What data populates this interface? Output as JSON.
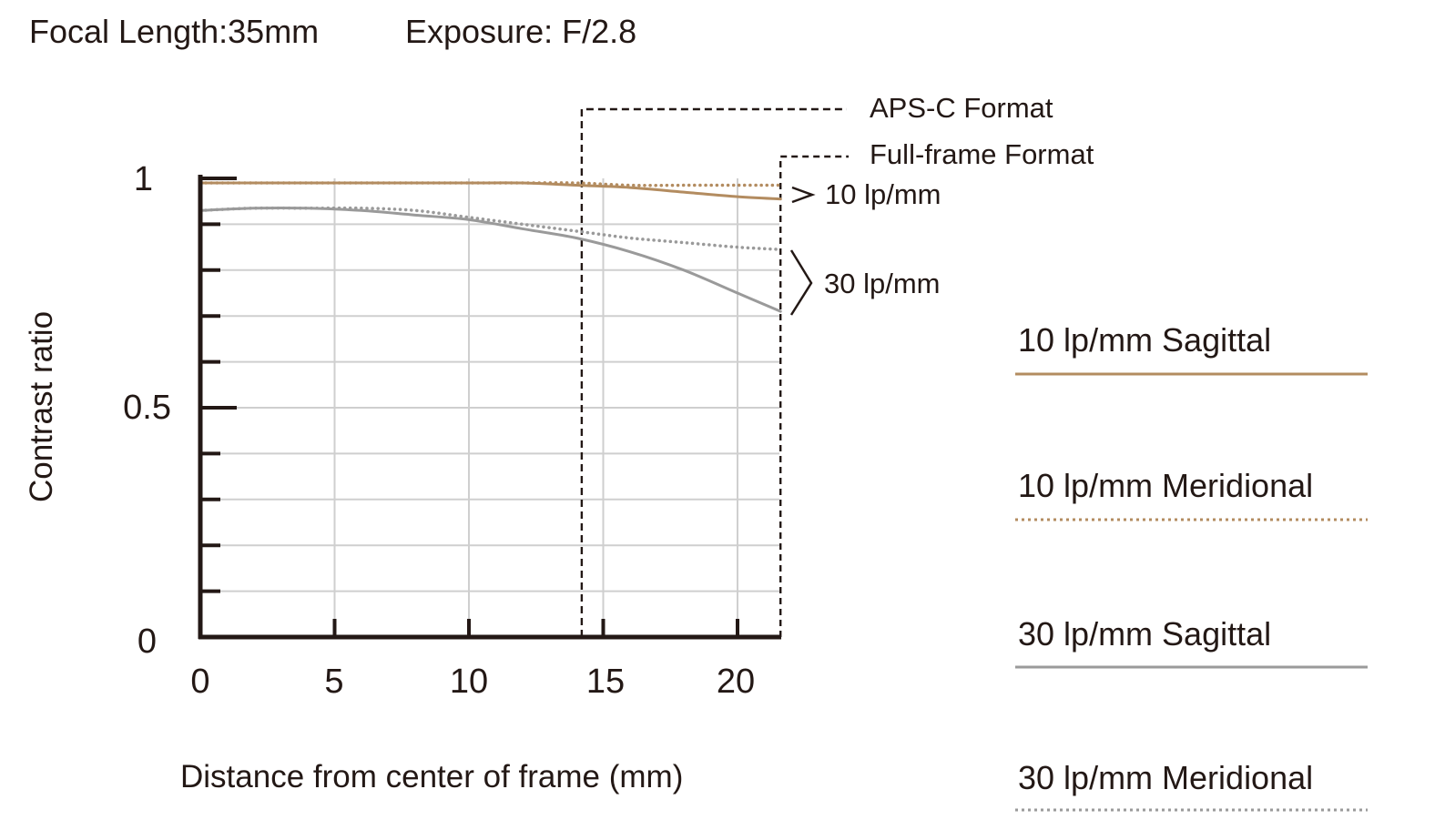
{
  "header": {
    "focal_length": "Focal Length:35mm",
    "exposure": "Exposure: F/2.8"
  },
  "colors": {
    "lp10": "#b38c60",
    "lp30": "#9a9a9a",
    "axis": "#231815",
    "grid": "#cfcfcf"
  },
  "chart_data": {
    "type": "line",
    "xlabel": "Distance from center of frame (mm)",
    "ylabel": "Contrast ratio",
    "xlim": [
      0,
      21.6
    ],
    "ylim": [
      0,
      1
    ],
    "x_ticks": [
      "0",
      "5",
      "10",
      "15",
      "20"
    ],
    "y_ticks": [
      "0",
      "0.5",
      "1"
    ],
    "grid": true,
    "format_lines": [
      {
        "name": "APS-C Format",
        "x": 14.2
      },
      {
        "name": "Full-frame Format",
        "x": 21.6
      }
    ],
    "frequency_labels": [
      "10 lp/mm",
      "30 lp/mm"
    ],
    "x": [
      0,
      2,
      4,
      6,
      8,
      10,
      12,
      14,
      16,
      18,
      20,
      21.6
    ],
    "series": [
      {
        "name": "10 lp/mm Sagittal",
        "color": "#b38c60",
        "style": "solid",
        "values": [
          0.99,
          0.99,
          0.99,
          0.99,
          0.99,
          0.99,
          0.99,
          0.985,
          0.98,
          0.97,
          0.96,
          0.955
        ]
      },
      {
        "name": "10 lp/mm Meridional",
        "color": "#b38c60",
        "style": "dotted",
        "values": [
          0.99,
          0.99,
          0.99,
          0.99,
          0.99,
          0.99,
          0.99,
          0.99,
          0.985,
          0.985,
          0.985,
          0.985
        ]
      },
      {
        "name": "30 lp/mm Sagittal",
        "color": "#9a9a9a",
        "style": "solid",
        "values": [
          0.93,
          0.935,
          0.935,
          0.93,
          0.92,
          0.91,
          0.89,
          0.87,
          0.84,
          0.8,
          0.75,
          0.71
        ]
      },
      {
        "name": "30 lp/mm Meridional",
        "color": "#9a9a9a",
        "style": "dotted",
        "values": [
          0.93,
          0.935,
          0.935,
          0.935,
          0.93,
          0.915,
          0.9,
          0.885,
          0.87,
          0.86,
          0.85,
          0.845
        ]
      }
    ]
  }
}
